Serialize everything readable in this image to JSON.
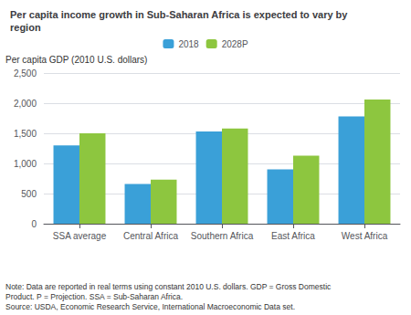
{
  "chart_data": {
    "type": "bar",
    "title": "Per capita income growth in Sub-Saharan Africa is expected to vary by region",
    "y_label": "Per capita GDP (2010 U.S. dollars)",
    "note": "Note: Data are reported in real terms using constant 2010 U.S. dollars. GDP = Gross Domestic\nProduct. P = Projection. SSA = Sub-Saharan Africa.\nSource: USDA, Economic Research Service, International Macroeconomic Data set.",
    "categories": [
      "SSA average",
      "Central Africa",
      "Southern Africa",
      "East Africa",
      "West Africa"
    ],
    "series": [
      {
        "name": "2018",
        "color": "#3aa0d8",
        "values": [
          1300,
          660,
          1530,
          900,
          1780
        ]
      },
      {
        "name": "2028P",
        "color": "#8dc63f",
        "values": [
          1500,
          730,
          1580,
          1130,
          2060
        ]
      }
    ],
    "ylim": [
      0,
      2500
    ],
    "yticks": [
      0,
      500,
      {
        "value": 1000,
        "label": "1,000"
      },
      {
        "value": 1500,
        "label": "1,500"
      },
      {
        "value": 2000,
        "label": "2,000"
      },
      {
        "value": 2500,
        "label": "2,500"
      }
    ],
    "grid": true,
    "legend": "top"
  }
}
